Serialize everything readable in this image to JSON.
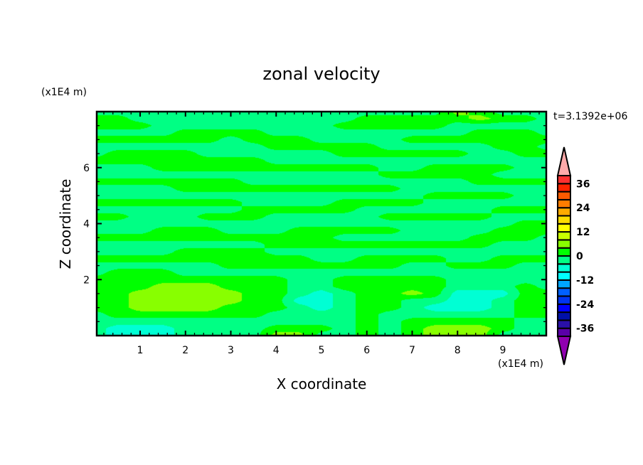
{
  "chart_data": {
    "type": "heatmap",
    "subtype": "filled-contour",
    "title": "zonal velocity",
    "xlabel": "X coordinate",
    "ylabel": "Z coordinate",
    "x_unit_label": "(x1E4 m)",
    "y_unit_label": "(x1E4 m)",
    "time_label": "t=3.1392e+06",
    "xlim": [
      0,
      10
    ],
    "ylim": [
      0,
      8
    ],
    "x_ticks": [
      1,
      2,
      3,
      4,
      5,
      6,
      7,
      8,
      9
    ],
    "y_ticks": [
      2,
      4,
      6
    ],
    "colorbar": {
      "levels_min": -40,
      "levels_max": 40,
      "level_step": 4,
      "tick_labels": [
        "36",
        "24",
        "12",
        "0",
        "-12",
        "-24",
        "-36"
      ],
      "tick_values": [
        36,
        24,
        12,
        0,
        -12,
        -24,
        -36
      ],
      "colors": [
        "#5a00a8",
        "#2a10a8",
        "#0010a8",
        "#0000ff",
        "#0034f0",
        "#0060ff",
        "#00a4ff",
        "#00ffff",
        "#00ffd4",
        "#00ff84",
        "#00ff00",
        "#88ff00",
        "#c8ff00",
        "#ffff00",
        "#ffdc00",
        "#ffaa00",
        "#ff7c00",
        "#ff5a00",
        "#ff2400",
        "#ff3030"
      ],
      "over_color": "#ffaaaa",
      "under_color": "#9000b0"
    },
    "grid_x": [
      0,
      0.5,
      1,
      1.5,
      2,
      2.5,
      3,
      3.5,
      4,
      4.5,
      5,
      5.5,
      6,
      6.5,
      7,
      7.5,
      8,
      8.5,
      9,
      9.5,
      10
    ],
    "grid_z": [
      8,
      7.75,
      7.5,
      7.25,
      7,
      6.75,
      6.5,
      6.25,
      6,
      5.75,
      5.5,
      5.25,
      5,
      4.75,
      4.5,
      4.25,
      4,
      3.75,
      3.5,
      3.25,
      3,
      2.75,
      2.5,
      2.25,
      2,
      1.75,
      1.5,
      1.25,
      1,
      0.75,
      0.5,
      0.25,
      0
    ],
    "values": [
      [
        -2,
        -2,
        -2,
        -2,
        -2,
        -2,
        -2,
        -2,
        -2,
        -2,
        -2,
        -2,
        -2,
        -2,
        -2,
        -2,
        6,
        2,
        -2,
        -2,
        -2
      ],
      [
        2,
        2,
        -2,
        -2,
        -2,
        -2,
        -2,
        -2,
        -2,
        -2,
        -2,
        -2,
        2,
        2,
        2,
        2,
        2,
        6,
        2,
        2,
        -2
      ],
      [
        2,
        2,
        2,
        -2,
        -2,
        -2,
        -2,
        -2,
        -2,
        -2,
        -2,
        2,
        2,
        2,
        2,
        2,
        -2,
        -2,
        -2,
        -2,
        -2
      ],
      [
        -2,
        -2,
        -2,
        -2,
        2,
        2,
        2,
        2,
        -2,
        -2,
        -2,
        -2,
        -2,
        -2,
        -2,
        -2,
        -2,
        2,
        2,
        2,
        -2
      ],
      [
        2,
        2,
        2,
        2,
        2,
        2,
        -2,
        2,
        2,
        2,
        -2,
        -2,
        -2,
        -2,
        2,
        2,
        2,
        2,
        2,
        2,
        2
      ],
      [
        -2,
        -2,
        -2,
        -2,
        -2,
        -2,
        -2,
        -2,
        2,
        2,
        2,
        2,
        2,
        -2,
        -2,
        -2,
        -2,
        -2,
        2,
        2,
        -2
      ],
      [
        -2,
        2,
        2,
        2,
        2,
        -2,
        -2,
        -2,
        -2,
        -2,
        -2,
        2,
        2,
        2,
        2,
        2,
        2,
        -2,
        -2,
        2,
        2
      ],
      [
        2,
        2,
        2,
        2,
        2,
        2,
        2,
        2,
        -2,
        -2,
        -2,
        -2,
        -2,
        -2,
        -2,
        -2,
        -2,
        -2,
        -2,
        -2,
        -2
      ],
      [
        -2,
        -2,
        -2,
        2,
        2,
        2,
        2,
        2,
        2,
        2,
        2,
        2,
        2,
        -2,
        -2,
        2,
        2,
        2,
        2,
        -2,
        -2
      ],
      [
        -2,
        -2,
        -2,
        -2,
        -2,
        -2,
        -2,
        -2,
        -2,
        -2,
        -2,
        -2,
        -2,
        2,
        2,
        2,
        2,
        2,
        -2,
        -2,
        -2
      ],
      [
        2,
        2,
        2,
        2,
        2,
        2,
        2,
        -2,
        -2,
        -2,
        -2,
        -2,
        -2,
        -2,
        -2,
        -2,
        -2,
        2,
        2,
        2,
        2
      ],
      [
        -2,
        -2,
        -2,
        -2,
        2,
        2,
        2,
        2,
        2,
        2,
        2,
        2,
        2,
        2,
        -2,
        -2,
        -2,
        -2,
        -2,
        -2,
        -2
      ],
      [
        -2,
        -2,
        -2,
        -2,
        -2,
        -2,
        -2,
        -2,
        -2,
        -2,
        -2,
        -2,
        -2,
        -2,
        -2,
        2,
        2,
        2,
        2,
        -2,
        -2
      ],
      [
        2,
        2,
        2,
        2,
        2,
        2,
        2,
        -2,
        -2,
        -2,
        -2,
        2,
        2,
        2,
        2,
        -2,
        -2,
        -2,
        -2,
        -2,
        -2
      ],
      [
        -2,
        -2,
        -2,
        -2,
        -2,
        -2,
        -2,
        2,
        2,
        2,
        2,
        2,
        -2,
        -2,
        -2,
        -2,
        -2,
        -2,
        2,
        2,
        2
      ],
      [
        2,
        2,
        -2,
        -2,
        -2,
        2,
        2,
        2,
        -2,
        -2,
        -2,
        -2,
        -2,
        2,
        2,
        2,
        2,
        2,
        -2,
        -2,
        -2
      ],
      [
        -2,
        -2,
        -2,
        -2,
        -2,
        -2,
        -2,
        -2,
        -2,
        -2,
        -2,
        -2,
        -2,
        -2,
        -2,
        -2,
        -2,
        -2,
        -2,
        2,
        2
      ],
      [
        -2,
        -2,
        -2,
        2,
        2,
        2,
        -2,
        -2,
        -2,
        2,
        2,
        2,
        2,
        2,
        -2,
        -2,
        -2,
        -2,
        2,
        2,
        2
      ],
      [
        2,
        2,
        2,
        2,
        2,
        2,
        2,
        2,
        2,
        2,
        2,
        -2,
        -2,
        -2,
        -2,
        -2,
        -2,
        2,
        2,
        2,
        -2
      ],
      [
        -2,
        -2,
        -2,
        -2,
        -2,
        -2,
        -2,
        -2,
        2,
        2,
        2,
        2,
        2,
        2,
        2,
        2,
        2,
        2,
        -2,
        -2,
        -2
      ],
      [
        -2,
        -2,
        -2,
        -2,
        2,
        2,
        2,
        2,
        -2,
        -2,
        -2,
        -2,
        -2,
        -2,
        -2,
        -2,
        -2,
        -2,
        -2,
        -2,
        -2
      ],
      [
        2,
        2,
        2,
        2,
        2,
        2,
        2,
        2,
        2,
        2,
        -2,
        -2,
        2,
        2,
        2,
        2,
        -2,
        -2,
        2,
        2,
        2
      ],
      [
        -2,
        -2,
        -2,
        -2,
        -2,
        -2,
        2,
        2,
        2,
        2,
        2,
        2,
        2,
        2,
        -2,
        -2,
        2,
        2,
        2,
        -2,
        -2
      ],
      [
        -2,
        2,
        2,
        2,
        -2,
        -2,
        -2,
        -2,
        -2,
        -2,
        -2,
        -2,
        -2,
        -2,
        -2,
        -2,
        -2,
        -2,
        -2,
        -2,
        -2
      ],
      [
        2,
        2,
        2,
        2,
        2,
        2,
        2,
        2,
        2,
        -2,
        -2,
        2,
        2,
        2,
        2,
        2,
        -2,
        -2,
        -2,
        -2,
        -2
      ],
      [
        2,
        2,
        2,
        6,
        6,
        6,
        2,
        2,
        2,
        -2,
        -2,
        2,
        2,
        2,
        2,
        2,
        -2,
        -2,
        -2,
        2,
        -2
      ],
      [
        2,
        2,
        6,
        6,
        6,
        6,
        6,
        2,
        2,
        -2,
        -6,
        -2,
        2,
        2,
        6,
        2,
        -6,
        -6,
        -6,
        2,
        2
      ],
      [
        2,
        2,
        6,
        6,
        6,
        6,
        6,
        2,
        2,
        -6,
        -6,
        -2,
        2,
        2,
        -2,
        -2,
        -6,
        -6,
        -2,
        2,
        2
      ],
      [
        2,
        2,
        6,
        6,
        6,
        6,
        2,
        2,
        2,
        -2,
        -6,
        -2,
        2,
        2,
        -2,
        -6,
        -6,
        -6,
        -2,
        2,
        2
      ],
      [
        -2,
        2,
        2,
        2,
        2,
        2,
        2,
        2,
        -2,
        -2,
        -2,
        -2,
        2,
        -2,
        -2,
        -2,
        -2,
        -2,
        -2,
        2,
        2
      ],
      [
        -2,
        -2,
        -2,
        -2,
        -2,
        -2,
        -2,
        -2,
        -2,
        -2,
        -2,
        -2,
        2,
        -2,
        2,
        2,
        2,
        2,
        2,
        -2,
        -2
      ],
      [
        -2,
        -6,
        -6,
        -6,
        -2,
        -2,
        -2,
        -2,
        2,
        2,
        2,
        -2,
        2,
        -2,
        2,
        6,
        6,
        6,
        2,
        -2,
        -2
      ],
      [
        -2,
        -6,
        -6,
        -6,
        -2,
        -2,
        -2,
        -2,
        6,
        6,
        -2,
        -2,
        2,
        -2,
        2,
        6,
        6,
        6,
        -2,
        -2,
        -2
      ]
    ]
  }
}
